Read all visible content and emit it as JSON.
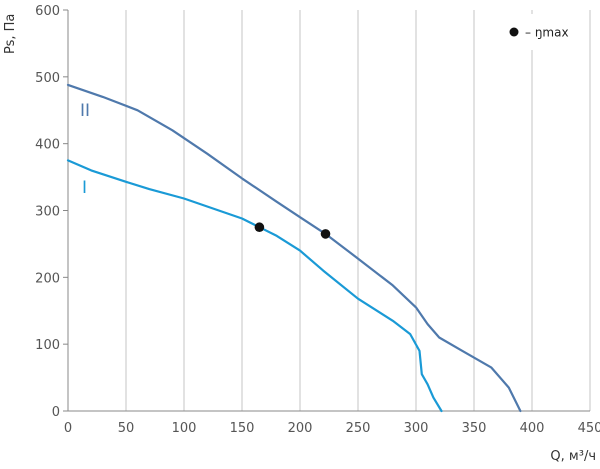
{
  "chart_data": {
    "type": "line",
    "xlabel": "Q, м³/ч",
    "ylabel": "Ps, Па",
    "xlim": [
      0,
      450
    ],
    "ylim": [
      0,
      600
    ],
    "x_ticks": [
      "0",
      "50",
      "100",
      "150",
      "200",
      "250",
      "300",
      "350",
      "400",
      "450"
    ],
    "y_ticks": [
      "0",
      "100",
      "200",
      "300",
      "400",
      "500",
      "600"
    ],
    "grid": "vertical",
    "legend": {
      "position": "top-right",
      "marker_label": "– ŋmax"
    },
    "series": [
      {
        "name": "I",
        "color": "#1a9ad6",
        "points": [
          [
            0,
            375
          ],
          [
            20,
            360
          ],
          [
            50,
            343
          ],
          [
            70,
            332
          ],
          [
            100,
            318
          ],
          [
            130,
            300
          ],
          [
            150,
            288
          ],
          [
            165,
            275
          ],
          [
            180,
            262
          ],
          [
            200,
            240
          ],
          [
            220,
            210
          ],
          [
            250,
            168
          ],
          [
            280,
            135
          ],
          [
            295,
            115
          ],
          [
            303,
            90
          ],
          [
            305,
            55
          ],
          [
            310,
            40
          ],
          [
            315,
            20
          ],
          [
            322,
            0
          ]
        ],
        "max_eff": [
          165,
          275
        ]
      },
      {
        "name": "II",
        "color": "#4f79ac",
        "points": [
          [
            0,
            488
          ],
          [
            30,
            470
          ],
          [
            60,
            450
          ],
          [
            90,
            420
          ],
          [
            120,
            385
          ],
          [
            150,
            348
          ],
          [
            180,
            313
          ],
          [
            200,
            290
          ],
          [
            222,
            265
          ],
          [
            250,
            228
          ],
          [
            280,
            188
          ],
          [
            300,
            155
          ],
          [
            310,
            130
          ],
          [
            320,
            110
          ],
          [
            340,
            90
          ],
          [
            365,
            65
          ],
          [
            380,
            35
          ],
          [
            390,
            0
          ]
        ],
        "max_eff": [
          222,
          265
        ]
      }
    ]
  }
}
